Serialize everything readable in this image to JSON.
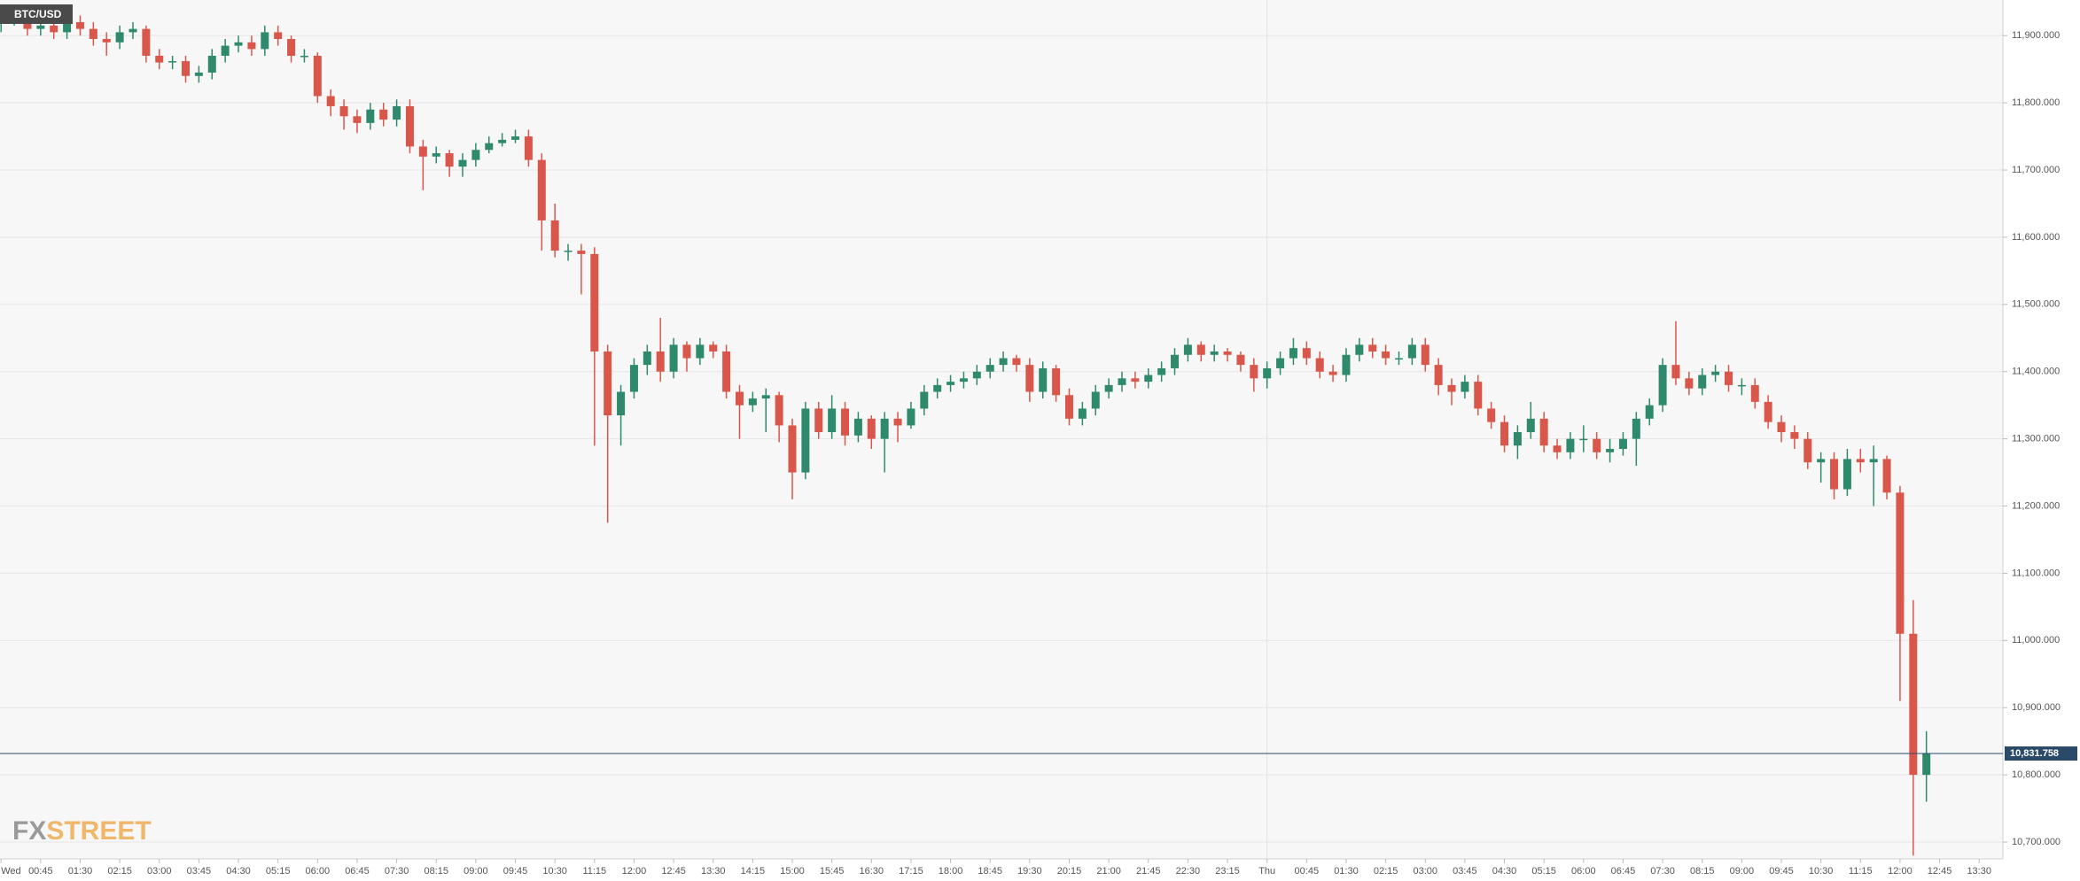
{
  "chart_data": {
    "type": "candlestick",
    "title": "BTC/USD",
    "logo": [
      "FX",
      "STREET"
    ],
    "up_color": "#2f8a6d",
    "down_color": "#d9574a",
    "grid": true,
    "xlim": [
      -0.08,
      151.8
    ],
    "ylim": [
      10675,
      11953
    ],
    "yticks": [
      {
        "value": 11900,
        "label": "11,900.000"
      },
      {
        "value": 11800,
        "label": "11,800.000"
      },
      {
        "value": 11700,
        "label": "11,700.000"
      },
      {
        "value": 11600,
        "label": "11,600.000"
      },
      {
        "value": 11500,
        "label": "11,500.000"
      },
      {
        "value": 11400,
        "label": "11,400.000"
      },
      {
        "value": 11300,
        "label": "11,300.000"
      },
      {
        "value": 11200,
        "label": "11,200.000"
      },
      {
        "value": 11100,
        "label": "11,100.000"
      },
      {
        "value": 11000,
        "label": "11,000.000"
      },
      {
        "value": 10900,
        "label": "10,900.000"
      },
      {
        "value": 10800,
        "label": "10,800.000"
      },
      {
        "value": 10700,
        "label": "10,700.000"
      }
    ],
    "xticks": [
      {
        "value": 0,
        "label": "Wed"
      },
      {
        "value": 3,
        "label": "00:45"
      },
      {
        "value": 6,
        "label": "01:30"
      },
      {
        "value": 9,
        "label": "02:15"
      },
      {
        "value": 12,
        "label": "03:00"
      },
      {
        "value": 15,
        "label": "03:45"
      },
      {
        "value": 18,
        "label": "04:30"
      },
      {
        "value": 21,
        "label": "05:15"
      },
      {
        "value": 24,
        "label": "06:00"
      },
      {
        "value": 27,
        "label": "06:45"
      },
      {
        "value": 30,
        "label": "07:30"
      },
      {
        "value": 33,
        "label": "08:15"
      },
      {
        "value": 36,
        "label": "09:00"
      },
      {
        "value": 39,
        "label": "09:45"
      },
      {
        "value": 42,
        "label": "10:30"
      },
      {
        "value": 45,
        "label": "11:15"
      },
      {
        "value": 48,
        "label": "12:00"
      },
      {
        "value": 51,
        "label": "12:45"
      },
      {
        "value": 54,
        "label": "13:30"
      },
      {
        "value": 57,
        "label": "14:15"
      },
      {
        "value": 60,
        "label": "15:00"
      },
      {
        "value": 63,
        "label": "15:45"
      },
      {
        "value": 66,
        "label": "16:30"
      },
      {
        "value": 69,
        "label": "17:15"
      },
      {
        "value": 72,
        "label": "18:00"
      },
      {
        "value": 75,
        "label": "18:45"
      },
      {
        "value": 78,
        "label": "19:30"
      },
      {
        "value": 81,
        "label": "20:15"
      },
      {
        "value": 84,
        "label": "21:00"
      },
      {
        "value": 87,
        "label": "21:45"
      },
      {
        "value": 90,
        "label": "22:30"
      },
      {
        "value": 93,
        "label": "23:15"
      },
      {
        "value": 96,
        "label": "Thu"
      },
      {
        "value": 99,
        "label": "00:45"
      },
      {
        "value": 102,
        "label": "01:30"
      },
      {
        "value": 105,
        "label": "02:15"
      },
      {
        "value": 108,
        "label": "03:00"
      },
      {
        "value": 111,
        "label": "03:45"
      },
      {
        "value": 114,
        "label": "04:30"
      },
      {
        "value": 117,
        "label": "05:15"
      },
      {
        "value": 120,
        "label": "06:00"
      },
      {
        "value": 123,
        "label": "06:45"
      },
      {
        "value": 126,
        "label": "07:30"
      },
      {
        "value": 129,
        "label": "08:15"
      },
      {
        "value": 132,
        "label": "09:00"
      },
      {
        "value": 135,
        "label": "09:45"
      },
      {
        "value": 138,
        "label": "10:30"
      },
      {
        "value": 141,
        "label": "11:15"
      },
      {
        "value": 144,
        "label": "12:00"
      },
      {
        "value": 147,
        "label": "12:45"
      },
      {
        "value": 150,
        "label": "13:30"
      }
    ],
    "last_price": {
      "value": 10831.758,
      "label": "10,831.758",
      "color": "#2b4a6a"
    },
    "open": [
      11920,
      11925,
      11930,
      11910,
      11915,
      11905,
      11920,
      11910,
      11895,
      11890,
      11905,
      11910,
      11870,
      11860,
      11862,
      11840,
      11845,
      11870,
      11885,
      11890,
      11880,
      11905,
      11895,
      11870,
      11870,
      11810,
      11795,
      11780,
      11770,
      11790,
      11775,
      11795,
      11735,
      11720,
      11725,
      11705,
      11715,
      11730,
      11740,
      11745,
      11750,
      11715,
      11625,
      11580,
      11580,
      11575,
      11430,
      11335,
      11370,
      11410,
      11430,
      11400,
      11440,
      11420,
      11440,
      11430,
      11370,
      11350,
      11360,
      11365,
      11320,
      11250,
      11345,
      11310,
      11345,
      11305,
      11330,
      11300,
      11330,
      11320,
      11345,
      11370,
      11380,
      11385,
      11390,
      11400,
      11410,
      11420,
      11410,
      11370,
      11405,
      11365,
      11330,
      11345,
      11370,
      11380,
      11390,
      11385,
      11395,
      11405,
      11425,
      11440,
      11425,
      11430,
      11425,
      11410,
      11390,
      11405,
      11420,
      11435,
      11420,
      11400,
      11395,
      11425,
      11440,
      11430,
      11420,
      11420,
      11440,
      11410,
      11380,
      11370,
      11385,
      11345,
      11325,
      11290,
      11310,
      11330,
      11290,
      11280,
      11300,
      11300,
      11280,
      11285,
      11300,
      11330,
      11350,
      11410,
      11390,
      11375,
      11395,
      11400,
      11380,
      11380,
      11355,
      11325,
      11310,
      11300,
      11265,
      11270,
      11225,
      11270,
      11265,
      11270,
      11220,
      11010,
      10800
    ],
    "high": [
      11940,
      11940,
      11940,
      11925,
      11925,
      11930,
      11930,
      11920,
      11905,
      11915,
      11920,
      11915,
      11880,
      11870,
      11870,
      11855,
      11880,
      11895,
      11900,
      11900,
      11915,
      11915,
      11900,
      11880,
      11875,
      11820,
      11805,
      11790,
      11800,
      11800,
      11805,
      11805,
      11745,
      11735,
      11730,
      11725,
      11740,
      11750,
      11755,
      11760,
      11760,
      11725,
      11650,
      11590,
      11590,
      11585,
      11440,
      11380,
      11420,
      11440,
      11480,
      11450,
      11445,
      11450,
      11445,
      11440,
      11380,
      11370,
      11375,
      11370,
      11330,
      11355,
      11355,
      11365,
      11355,
      11340,
      11335,
      11340,
      11340,
      11355,
      11380,
      11390,
      11395,
      11400,
      11410,
      11420,
      11430,
      11425,
      11420,
      11415,
      11410,
      11375,
      11355,
      11380,
      11390,
      11400,
      11400,
      11405,
      11415,
      11435,
      11450,
      11445,
      11440,
      11435,
      11430,
      11420,
      11415,
      11430,
      11450,
      11445,
      11430,
      11410,
      11435,
      11450,
      11450,
      11440,
      11430,
      11450,
      11450,
      11420,
      11390,
      11395,
      11395,
      11355,
      11335,
      11320,
      11355,
      11340,
      11300,
      11310,
      11320,
      11310,
      11300,
      11310,
      11340,
      11360,
      11420,
      11475,
      11400,
      11405,
      11410,
      11410,
      11390,
      11390,
      11365,
      11335,
      11320,
      11310,
      11280,
      11280,
      11285,
      11285,
      11290,
      11275,
      11230,
      11060,
      10865
    ],
    "low": [
      11905,
      11915,
      11900,
      11900,
      11895,
      11895,
      11900,
      11885,
      11870,
      11880,
      11895,
      11860,
      11850,
      11850,
      11830,
      11830,
      11835,
      11860,
      11875,
      11870,
      11870,
      11885,
      11860,
      11860,
      11800,
      11780,
      11760,
      11755,
      11760,
      11765,
      11765,
      11725,
      11670,
      11710,
      11690,
      11690,
      11705,
      11725,
      11735,
      11740,
      11705,
      11580,
      11570,
      11565,
      11515,
      11290,
      11175,
      11290,
      11360,
      11395,
      11385,
      11390,
      11400,
      11410,
      11420,
      11360,
      11300,
      11340,
      11310,
      11295,
      11210,
      11240,
      11300,
      11300,
      11290,
      11295,
      11285,
      11250,
      11295,
      11315,
      11335,
      11360,
      11370,
      11375,
      11380,
      11390,
      11400,
      11400,
      11355,
      11360,
      11355,
      11320,
      11320,
      11335,
      11360,
      11370,
      11375,
      11375,
      11385,
      11395,
      11415,
      11415,
      11415,
      11415,
      11400,
      11370,
      11375,
      11395,
      11410,
      11410,
      11390,
      11385,
      11385,
      11415,
      11420,
      11410,
      11410,
      11410,
      11400,
      11365,
      11350,
      11360,
      11335,
      11315,
      11280,
      11270,
      11300,
      11280,
      11270,
      11270,
      11280,
      11270,
      11265,
      11275,
      11260,
      11320,
      11340,
      11380,
      11365,
      11365,
      11385,
      11370,
      11365,
      11345,
      11315,
      11295,
      11285,
      11255,
      11235,
      11210,
      11215,
      11250,
      11200,
      11210,
      10910,
      10680,
      10760
    ],
    "close": [
      11925,
      11930,
      11910,
      11915,
      11905,
      11920,
      11910,
      11895,
      11890,
      11905,
      11910,
      11870,
      11860,
      11862,
      11840,
      11845,
      11870,
      11885,
      11890,
      11880,
      11905,
      11895,
      11870,
      11870,
      11810,
      11795,
      11780,
      11770,
      11790,
      11775,
      11795,
      11735,
      11720,
      11725,
      11705,
      11715,
      11730,
      11740,
      11745,
      11750,
      11715,
      11625,
      11580,
      11580,
      11575,
      11430,
      11335,
      11370,
      11410,
      11430,
      11400,
      11440,
      11420,
      11440,
      11430,
      11370,
      11350,
      11360,
      11365,
      11320,
      11250,
      11345,
      11310,
      11345,
      11305,
      11330,
      11300,
      11330,
      11320,
      11345,
      11370,
      11380,
      11385,
      11390,
      11400,
      11410,
      11420,
      11410,
      11370,
      11405,
      11365,
      11330,
      11345,
      11370,
      11380,
      11390,
      11385,
      11395,
      11405,
      11425,
      11440,
      11425,
      11430,
      11425,
      11410,
      11390,
      11405,
      11420,
      11435,
      11420,
      11400,
      11395,
      11425,
      11440,
      11430,
      11420,
      11420,
      11440,
      11410,
      11380,
      11370,
      11385,
      11345,
      11325,
      11290,
      11310,
      11330,
      11290,
      11280,
      11300,
      11300,
      11280,
      11285,
      11300,
      11330,
      11350,
      11410,
      11390,
      11375,
      11395,
      11400,
      11380,
      11380,
      11355,
      11325,
      11310,
      11300,
      11265,
      11270,
      11225,
      11270,
      11265,
      11270,
      11220,
      11010,
      10800,
      10831.758
    ]
  }
}
